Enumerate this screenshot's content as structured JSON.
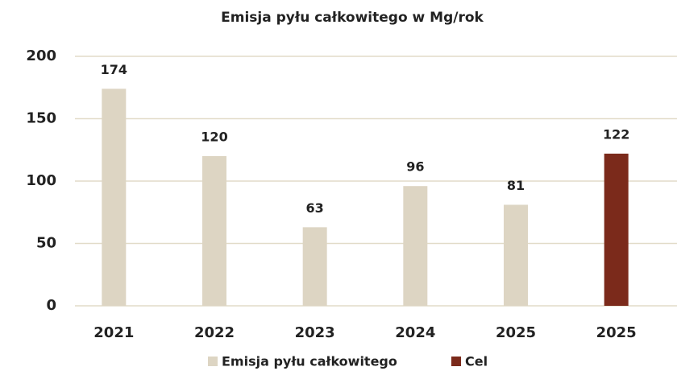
{
  "chart_data": {
    "type": "bar",
    "title": "Emisja pyłu całkowitego w Mg/rok",
    "categories": [
      "2021",
      "2022",
      "2023",
      "2024",
      "2025",
      "2025"
    ],
    "series": [
      {
        "name": "Emisja pyłu całkowitego",
        "color": "#ddd5c3",
        "values": [
          174,
          120,
          63,
          96,
          81,
          null
        ]
      },
      {
        "name": "Cel",
        "color": "#7b2a1b",
        "values": [
          null,
          null,
          null,
          null,
          null,
          122
        ]
      }
    ],
    "ylim": [
      0,
      200
    ],
    "yticks": [
      0,
      50,
      100,
      150,
      200
    ],
    "grid": true,
    "legend": "bottom"
  }
}
